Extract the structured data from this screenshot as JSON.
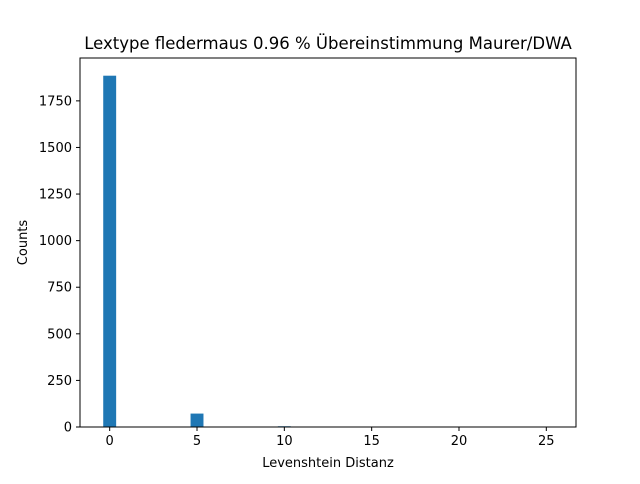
{
  "chart_data": {
    "type": "bar",
    "title": "Lextype fledermaus  0.96 % Übereinstimmung Maurer/DWA",
    "xlabel": "Levenshtein Distanz",
    "ylabel": "Counts",
    "xlim": [
      -1.7,
      26.7
    ],
    "ylim": [
      0,
      1980
    ],
    "x_ticks": [
      0,
      5,
      10,
      15,
      20,
      25
    ],
    "y_ticks": [
      0,
      250,
      500,
      750,
      1000,
      1250,
      1500,
      1750
    ],
    "bar_width": 0.74,
    "bars": [
      {
        "x": 0,
        "value": 1885
      },
      {
        "x": 5,
        "value": 72
      },
      {
        "x": 10,
        "value": 4
      }
    ],
    "color": "#1f77b4",
    "grid": false,
    "legend": "none"
  }
}
